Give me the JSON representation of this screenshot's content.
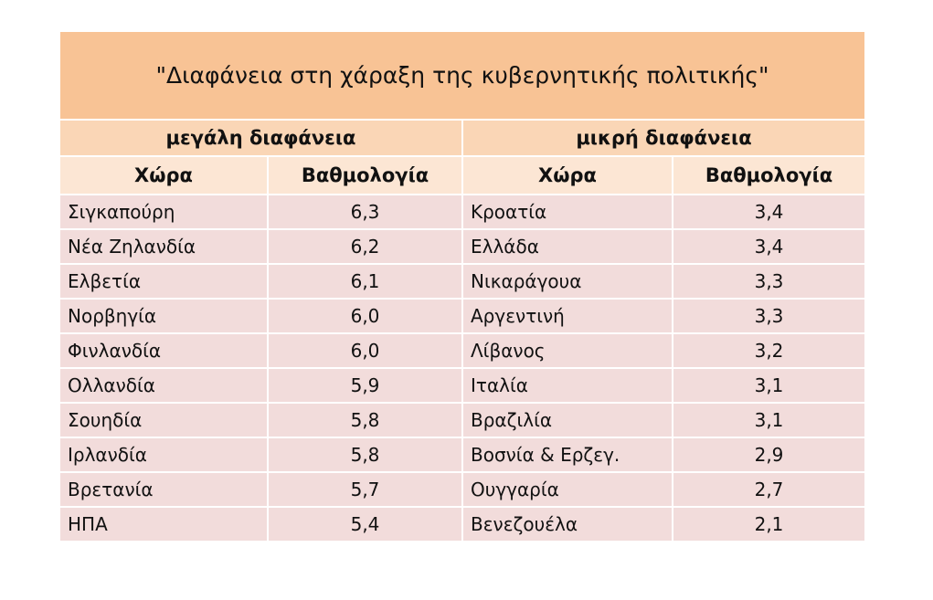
{
  "title": "\"Διαφάνεια στη χάραξη της κυβερνητικής πολιτικής\"",
  "groups": [
    "μεγάλη διαφάνεια",
    "μικρή διαφάνεια"
  ],
  "headers": [
    "Χώρα",
    "Βαθμολογία",
    "Χώρα",
    "Βαθμολογία"
  ],
  "rows": [
    [
      "Σιγκαπούρη",
      "6,3",
      "Κροατία",
      "3,4"
    ],
    [
      "Νέα Ζηλανδία",
      "6,2",
      "Ελλάδα",
      "3,4"
    ],
    [
      "Ελβετία",
      "6,1",
      "Νικαράγουα",
      "3,3"
    ],
    [
      "Νορβηγία",
      "6,0",
      "Αργεντινή",
      "3,3"
    ],
    [
      "Φινλανδία",
      "6,0",
      "Λίβανος",
      "3,2"
    ],
    [
      "Ολλανδία",
      "5,9",
      "Ιταλία",
      "3,1"
    ],
    [
      "Σουηδία",
      "5,8",
      "Βραζιλία",
      "3,1"
    ],
    [
      "Ιρλανδία",
      "5,8",
      "Βοσνία & Ερζεγ.",
      "2,9"
    ],
    [
      "Βρετανία",
      "5,7",
      "Ουγγαρία",
      "2,7"
    ],
    [
      "ΗΠΑ",
      "5,4",
      "Βενεζουέλα",
      "2,1"
    ]
  ]
}
